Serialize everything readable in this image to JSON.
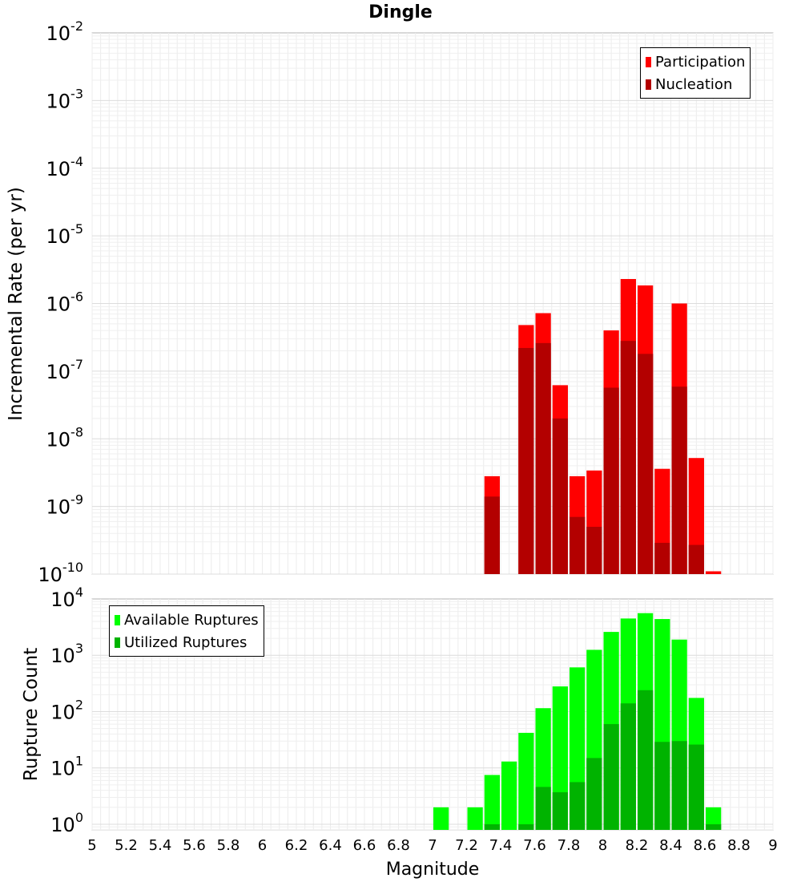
{
  "chart_data": {
    "title": "Dingle",
    "xlabel": "Magnitude",
    "xlim": [
      5,
      9
    ],
    "xticks": [
      "5",
      "5.2",
      "5.4",
      "5.6",
      "5.8",
      "6",
      "6.2",
      "6.4",
      "6.6",
      "6.8",
      "7",
      "7.2",
      "7.4",
      "7.6",
      "7.8",
      "8",
      "8.2",
      "8.4",
      "8.6",
      "8.8",
      "9"
    ],
    "bin_width": 0.1,
    "panels": [
      {
        "type": "bar",
        "scale": "log",
        "ylabel": "Incremental Rate (per yr)",
        "ylim_exp": [
          -10,
          -2
        ],
        "ytick_exps": [
          "-10",
          "-9",
          "-8",
          "-7",
          "-6",
          "-5",
          "-4",
          "-3",
          "-2"
        ],
        "legend_position": "top-right",
        "series": [
          {
            "name": "Participation",
            "color": "#ff0000",
            "x": [
              7.35,
              7.55,
              7.65,
              7.75,
              7.85,
              7.95,
              8.05,
              8.15,
              8.25,
              8.35,
              8.45,
              8.55,
              8.65
            ],
            "values": [
              2.8e-09,
              4.8e-07,
              7.2e-07,
              6.2e-08,
              2.8e-09,
              3.4e-09,
              4e-07,
              2.3e-06,
              1.85e-06,
              3.6e-09,
              1e-06,
              5.2e-09,
              1.1e-10
            ]
          },
          {
            "name": "Nucleation",
            "color": "#b30000",
            "x": [
              7.35,
              7.55,
              7.65,
              7.75,
              7.85,
              7.95,
              8.05,
              8.15,
              8.25,
              8.35,
              8.45,
              8.55
            ],
            "values": [
              1.4e-09,
              2.2e-07,
              2.6e-07,
              2e-08,
              7e-10,
              5e-10,
              5.7e-08,
              2.8e-07,
              1.8e-07,
              2.9e-10,
              5.9e-08,
              2.7e-10
            ]
          }
        ]
      },
      {
        "type": "bar",
        "scale": "log",
        "ylabel": "Rupture Count",
        "ylim_exp": [
          -0.1,
          4
        ],
        "ytick_exps": [
          "0",
          "1",
          "2",
          "3",
          "4"
        ],
        "legend_position": "top-left",
        "series": [
          {
            "name": "Available Ruptures",
            "color": "#00ff00",
            "x": [
              7.05,
              7.25,
              7.35,
              7.45,
              7.55,
              7.65,
              7.75,
              7.85,
              7.95,
              8.05,
              8.15,
              8.25,
              8.35,
              8.45,
              8.55,
              8.65
            ],
            "values": [
              2,
              2,
              7.5,
              13,
              42,
              115,
              280,
              610,
              1250,
              2600,
              4500,
              5600,
              4400,
              1900,
              175,
              2
            ]
          },
          {
            "name": "Utilized Ruptures",
            "color": "#00b300",
            "x": [
              7.35,
              7.55,
              7.65,
              7.75,
              7.85,
              7.95,
              8.05,
              8.15,
              8.25,
              8.35,
              8.45,
              8.55,
              8.65
            ],
            "values": [
              1,
              1,
              4.6,
              3.7,
              5.6,
              15,
              60,
              140,
              240,
              29,
              30,
              26,
              1
            ]
          }
        ]
      }
    ]
  }
}
